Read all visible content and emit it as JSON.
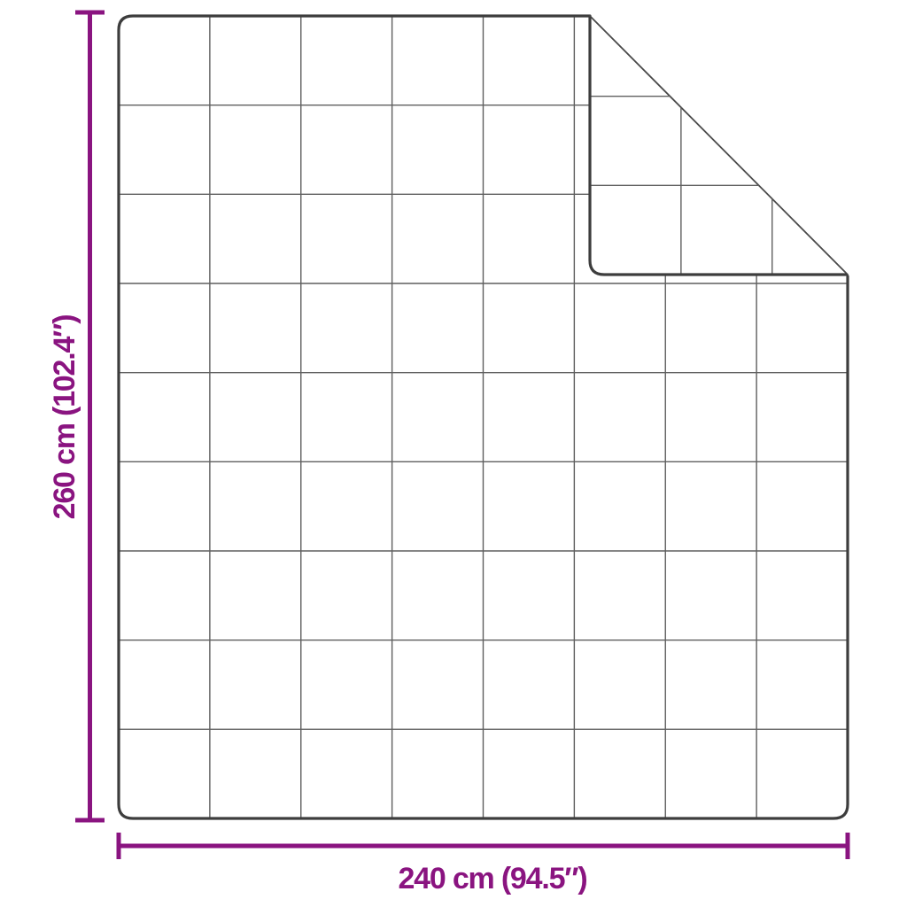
{
  "page": {
    "background_color": "#ffffff",
    "content_type": "product dimension diagram",
    "subject": "quilted blanket shown flat with its top-right corner folded over"
  },
  "diagram": {
    "colors": {
      "accent": "#8A1480",
      "outline": "#3d3d3d",
      "grid": "#5f5f5f",
      "crease": "#4a4a4a"
    },
    "dimensions": {
      "height_label": "260 cm (102.4″)",
      "width_label": "240 cm (94.5″)",
      "height_cm": 260,
      "height_inches": 102.4,
      "width_cm": 240,
      "width_inches": 94.5
    },
    "quilt_grid": {
      "columns": 8,
      "rows": 9
    },
    "fold": {
      "corner": "top-right"
    }
  }
}
